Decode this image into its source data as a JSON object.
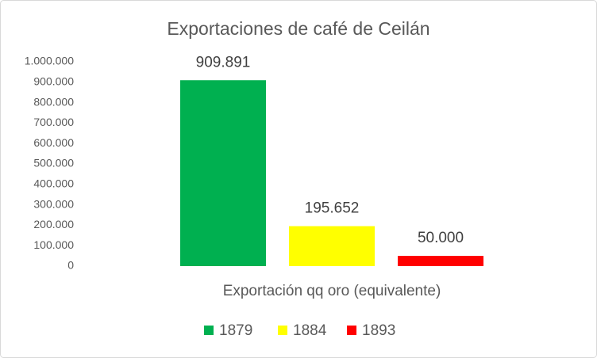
{
  "chart_data": {
    "type": "bar",
    "title": "Exportaciones de café de Ceilán",
    "categories": [
      "Exportación qq oro (equivalente)"
    ],
    "series": [
      {
        "name": "1879",
        "color": "#00b050",
        "values": [
          909891
        ],
        "value_labels": [
          "909.891"
        ]
      },
      {
        "name": "1884",
        "color": "#ffff00",
        "values": [
          195652
        ],
        "value_labels": [
          "195.652"
        ]
      },
      {
        "name": "1893",
        "color": "#ff0000",
        "values": [
          50000
        ],
        "value_labels": [
          "50.000"
        ]
      }
    ],
    "ylim": [
      0,
      1000000
    ],
    "yticks": [
      0,
      {
        "value": 100000,
        "label": "100.000"
      },
      {
        "value": 200000,
        "label": "200.000"
      },
      {
        "value": 300000,
        "label": "300.000"
      },
      {
        "value": 400000,
        "label": "400.000"
      },
      {
        "value": 500000,
        "label": "500.000"
      },
      {
        "value": 600000,
        "label": "600.000"
      },
      {
        "value": 700000,
        "label": "700.000"
      },
      {
        "value": 800000,
        "label": "800.000"
      },
      {
        "value": 900000,
        "label": "900.000"
      },
      {
        "value": 1000000,
        "label": "1.000.000"
      }
    ],
    "grid": false,
    "legend": "bottom"
  }
}
